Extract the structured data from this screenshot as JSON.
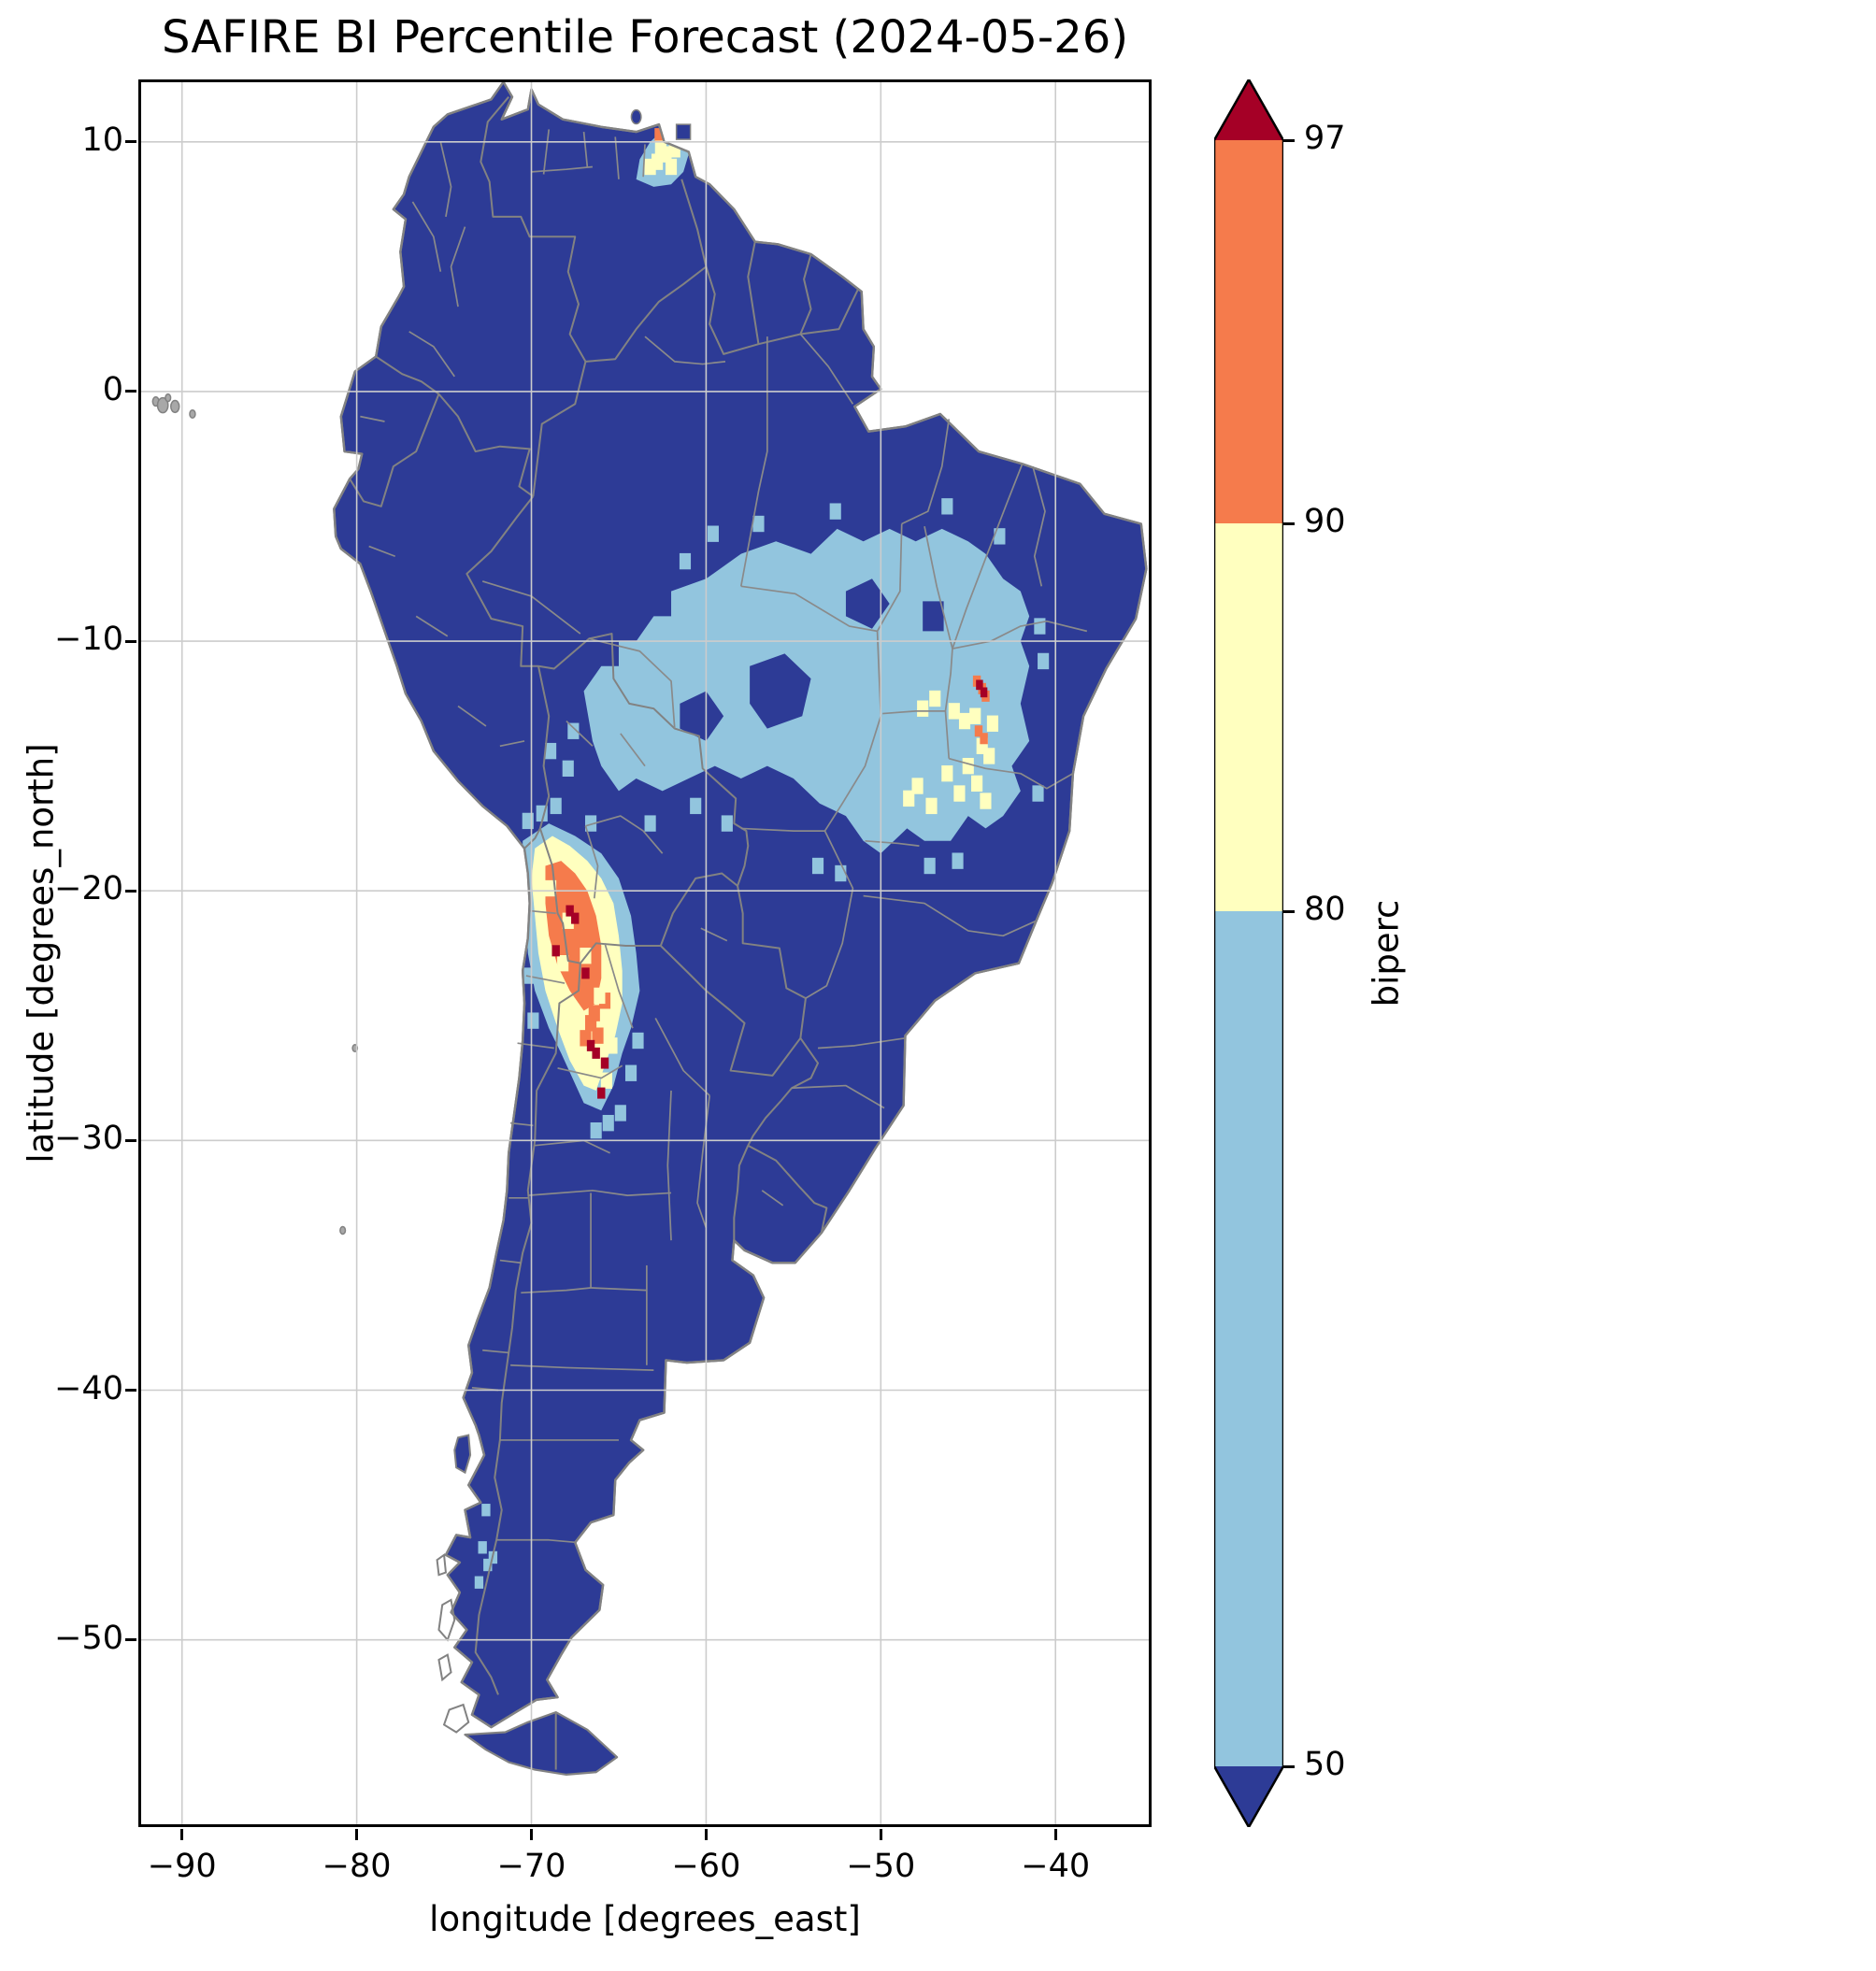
{
  "title": "SAFIRE BI Percentile Forecast (2024-05-26)",
  "axes": {
    "xlabel": "longitude [degrees_east]",
    "ylabel": "latitude [degrees_north]",
    "xlim": [
      -92.5,
      -34.5
    ],
    "ylim": [
      -57.5,
      12.5
    ],
    "x_ticks": [
      -90,
      -80,
      -70,
      -60,
      -50,
      -40
    ],
    "x_tick_labels": [
      "−90",
      "−80",
      "−70",
      "−60",
      "−50",
      "−40"
    ],
    "y_ticks": [
      10,
      0,
      -10,
      -20,
      -30,
      -40,
      -50
    ],
    "y_tick_labels": [
      "10",
      "0",
      "−10",
      "−20",
      "−30",
      "−40",
      "−50"
    ]
  },
  "colorbar": {
    "label": "biperc",
    "tick_labels": [
      "97",
      "90",
      "80",
      "50"
    ],
    "extend": "both"
  },
  "chart_data": {
    "type": "heatmap",
    "variable": "biperc",
    "forecast_date": "2024-05-26",
    "area": "South America",
    "boundaries": [
      50,
      80,
      90,
      97
    ],
    "bins": {
      "lt50": {
        "label": "< 50",
        "color": "#2d3b96"
      },
      "b50_80": {
        "label": "50-80",
        "color": "#92c5de"
      },
      "b80_90": {
        "label": "80-90",
        "color": "#ffffbf"
      },
      "b90_97": {
        "label": "90-97",
        "color": "#f57b4c"
      },
      "gt97": {
        "label": "> 97",
        "color": "#a50026"
      }
    },
    "regions": [
      {
        "name": "central-brazil-cerrado-blob",
        "bin": "b50_80",
        "polygon": [
          [
            -67.0,
            -12.0
          ],
          [
            -66.0,
            -11.0
          ],
          [
            -65.0,
            -11.0
          ],
          [
            -65.0,
            -10.0
          ],
          [
            -64.0,
            -10.0
          ],
          [
            -63.0,
            -9.0
          ],
          [
            -62.0,
            -9.0
          ],
          [
            -62.0,
            -8.0
          ],
          [
            -60.0,
            -7.5
          ],
          [
            -58.0,
            -6.5
          ],
          [
            -56.0,
            -6.0
          ],
          [
            -54.0,
            -6.5
          ],
          [
            -52.5,
            -5.5
          ],
          [
            -51.0,
            -6.0
          ],
          [
            -49.5,
            -5.5
          ],
          [
            -48.0,
            -6.0
          ],
          [
            -46.5,
            -5.5
          ],
          [
            -45.0,
            -6.0
          ],
          [
            -44.0,
            -6.5
          ],
          [
            -43.0,
            -7.5
          ],
          [
            -42.0,
            -8.0
          ],
          [
            -41.5,
            -9.0
          ],
          [
            -42.0,
            -10.0
          ],
          [
            -41.5,
            -11.0
          ],
          [
            -42.0,
            -12.5
          ],
          [
            -41.5,
            -14.0
          ],
          [
            -42.5,
            -15.0
          ],
          [
            -42.0,
            -16.0
          ],
          [
            -43.0,
            -17.0
          ],
          [
            -44.0,
            -17.5
          ],
          [
            -45.0,
            -17.0
          ],
          [
            -46.0,
            -18.0
          ],
          [
            -47.5,
            -18.0
          ],
          [
            -48.5,
            -17.5
          ],
          [
            -50.0,
            -18.5
          ],
          [
            -51.0,
            -18.0
          ],
          [
            -52.0,
            -17.0
          ],
          [
            -53.5,
            -16.5
          ],
          [
            -55.0,
            -15.5
          ],
          [
            -56.5,
            -15.0
          ],
          [
            -58.0,
            -15.5
          ],
          [
            -59.5,
            -15.0
          ],
          [
            -61.0,
            -15.5
          ],
          [
            -62.5,
            -16.0
          ],
          [
            -64.0,
            -15.5
          ],
          [
            -65.0,
            -16.0
          ],
          [
            -66.0,
            -15.0
          ],
          [
            -66.5,
            -14.0
          ]
        ]
      },
      {
        "name": "amazon-hole-1",
        "bin": "lt50",
        "polygon": [
          [
            -57.5,
            -11.0
          ],
          [
            -55.5,
            -10.5
          ],
          [
            -54.0,
            -11.5
          ],
          [
            -54.5,
            -13.0
          ],
          [
            -56.5,
            -13.5
          ],
          [
            -57.5,
            -12.5
          ]
        ]
      },
      {
        "name": "amazon-hole-2",
        "bin": "lt50",
        "polygon": [
          [
            -52.0,
            -8.0
          ],
          [
            -50.5,
            -7.5
          ],
          [
            -49.5,
            -8.5
          ],
          [
            -50.5,
            -9.5
          ],
          [
            -52.0,
            -9.0
          ]
        ]
      },
      {
        "name": "amazon-hole-3",
        "bin": "lt50",
        "polygon": [
          [
            -61.5,
            -12.5
          ],
          [
            -60.0,
            -12.0
          ],
          [
            -59.0,
            -13.0
          ],
          [
            -60.0,
            -14.0
          ],
          [
            -61.5,
            -13.5
          ]
        ]
      },
      {
        "name": "amazon-hole-4",
        "bin": "lt50",
        "polygon": [
          [
            -47.6,
            -8.4
          ],
          [
            -46.4,
            -8.4
          ],
          [
            -46.4,
            -9.6
          ],
          [
            -47.6,
            -9.6
          ]
        ]
      },
      {
        "name": "cerrado-blue-speckles",
        "bin": "b50_80",
        "cells": [
          [
            -61.2,
            -6.8
          ],
          [
            -59.6,
            -5.7
          ],
          [
            -57.0,
            -5.3
          ],
          [
            -52.6,
            -4.8
          ],
          [
            -46.2,
            -4.6
          ],
          [
            -43.2,
            -5.8
          ],
          [
            -40.9,
            -9.4
          ],
          [
            -40.7,
            -10.8
          ],
          [
            -41.0,
            -16.1
          ],
          [
            -52.3,
            -19.3
          ],
          [
            -53.6,
            -19.0
          ],
          [
            -47.2,
            -19.0
          ],
          [
            -45.6,
            -18.8
          ],
          [
            -58.8,
            -17.3
          ],
          [
            -60.6,
            -16.6
          ],
          [
            -67.6,
            -13.6
          ],
          [
            -67.9,
            -15.1
          ],
          [
            -63.2,
            -17.3
          ],
          [
            -68.9,
            -14.4
          ]
        ]
      },
      {
        "name": "bahia-yellow-cells",
        "bin": "b80_90",
        "cells": [
          [
            -45.8,
            -12.8
          ],
          [
            -45.2,
            -13.2
          ],
          [
            -44.6,
            -13.0
          ],
          [
            -44.2,
            -14.2
          ],
          [
            -45.0,
            -15.0
          ],
          [
            -44.5,
            -15.7
          ],
          [
            -45.5,
            -16.1
          ],
          [
            -46.2,
            -15.3
          ],
          [
            -43.8,
            -14.6
          ],
          [
            -46.9,
            -12.3
          ],
          [
            -47.6,
            -12.7
          ],
          [
            -47.9,
            -15.8
          ],
          [
            -48.4,
            -16.3
          ],
          [
            -47.1,
            -16.6
          ],
          [
            -44.0,
            -16.4
          ],
          [
            -43.6,
            -13.3
          ]
        ]
      },
      {
        "name": "bahia-orange-cells",
        "bin": "b90_97",
        "cell_size": 0.45,
        "cells": [
          [
            -44.5,
            -11.6
          ],
          [
            -44.2,
            -11.9
          ],
          [
            -44.0,
            -12.2
          ],
          [
            -44.4,
            -13.6
          ],
          [
            -44.1,
            -13.9
          ]
        ]
      },
      {
        "name": "bahia-red-cells",
        "bin": "gt97",
        "cell_size": 0.4,
        "cells": [
          [
            -44.35,
            -11.75
          ],
          [
            -44.1,
            -12.05
          ]
        ]
      },
      {
        "name": "andes-blue-fringe",
        "bin": "b50_80",
        "polygon": [
          [
            -70.5,
            -18.0
          ],
          [
            -69.0,
            -17.3
          ],
          [
            -67.5,
            -17.8
          ],
          [
            -66.0,
            -18.5
          ],
          [
            -65.0,
            -19.5
          ],
          [
            -64.3,
            -21.0
          ],
          [
            -64.0,
            -22.5
          ],
          [
            -63.8,
            -24.0
          ],
          [
            -64.3,
            -25.5
          ],
          [
            -64.8,
            -26.5
          ],
          [
            -65.3,
            -27.8
          ],
          [
            -66.0,
            -28.8
          ],
          [
            -67.0,
            -28.5
          ],
          [
            -68.3,
            -26.5
          ],
          [
            -69.0,
            -25.5
          ],
          [
            -69.8,
            -24.0
          ],
          [
            -70.2,
            -22.5
          ],
          [
            -70.3,
            -21.0
          ],
          [
            -70.5,
            -19.5
          ]
        ]
      },
      {
        "name": "andes-yellow-band",
        "bin": "b80_90",
        "polygon": [
          [
            -69.8,
            -18.3
          ],
          [
            -68.8,
            -17.8
          ],
          [
            -67.8,
            -18.2
          ],
          [
            -66.8,
            -18.8
          ],
          [
            -66.0,
            -19.5
          ],
          [
            -65.3,
            -20.5
          ],
          [
            -65.0,
            -21.8
          ],
          [
            -64.8,
            -23.2
          ],
          [
            -64.8,
            -24.5
          ],
          [
            -65.2,
            -25.8
          ],
          [
            -65.8,
            -27.0
          ],
          [
            -66.3,
            -28.0
          ],
          [
            -67.0,
            -27.8
          ],
          [
            -67.8,
            -26.8
          ],
          [
            -68.5,
            -25.5
          ],
          [
            -69.2,
            -24.0
          ],
          [
            -69.6,
            -22.5
          ],
          [
            -69.8,
            -21.0
          ],
          [
            -70.0,
            -19.5
          ]
        ]
      },
      {
        "name": "andes-orange-core",
        "bin": "b90_97",
        "polygon": [
          [
            -69.2,
            -19.0
          ],
          [
            -68.3,
            -18.8
          ],
          [
            -67.5,
            -19.3
          ],
          [
            -66.8,
            -20.0
          ],
          [
            -66.3,
            -21.0
          ],
          [
            -66.0,
            -22.2
          ],
          [
            -66.0,
            -23.5
          ],
          [
            -66.3,
            -24.5
          ],
          [
            -67.0,
            -24.8
          ],
          [
            -67.8,
            -24.0
          ],
          [
            -68.5,
            -23.0
          ],
          [
            -69.0,
            -21.8
          ],
          [
            -69.2,
            -20.5
          ]
        ]
      },
      {
        "name": "andes-orange-south-cells",
        "bin": "b90_97",
        "cells": [
          [
            -66.6,
            -25.3
          ],
          [
            -66.2,
            -25.8
          ],
          [
            -66.9,
            -25.9
          ],
          [
            -66.4,
            -24.9
          ],
          [
            -65.8,
            -24.4
          ]
        ]
      },
      {
        "name": "andes-yellow-speckles",
        "bin": "b80_90",
        "cells": [
          [
            -68.9,
            -19.9
          ],
          [
            -67.9,
            -21.2
          ],
          [
            -66.9,
            -22.6
          ],
          [
            -68.2,
            -22.9
          ],
          [
            -66.0,
            -26.5
          ],
          [
            -65.7,
            -27.6
          ],
          [
            -66.4,
            -27.2
          ],
          [
            -65.4,
            -26.2
          ],
          [
            -66.1,
            -24.2
          ]
        ]
      },
      {
        "name": "andes-blue-speckles",
        "bin": "b50_80",
        "cells": [
          [
            -70.2,
            -17.2
          ],
          [
            -69.4,
            -16.9
          ],
          [
            -68.6,
            -16.6
          ],
          [
            -66.6,
            -17.3
          ],
          [
            -65.6,
            -29.3
          ],
          [
            -66.3,
            -29.6
          ],
          [
            -64.9,
            -28.9
          ],
          [
            -64.3,
            -27.3
          ],
          [
            -63.9,
            -26.0
          ],
          [
            -69.9,
            -25.2
          ],
          [
            -70.1,
            -23.4
          ]
        ]
      },
      {
        "name": "andes-red-cells",
        "bin": "gt97",
        "cell_size": 0.45,
        "cells": [
          [
            -67.8,
            -20.8
          ],
          [
            -67.5,
            -21.1
          ],
          [
            -68.6,
            -22.4
          ],
          [
            -66.9,
            -23.3
          ],
          [
            -66.6,
            -26.2
          ],
          [
            -66.3,
            -26.5
          ],
          [
            -66.0,
            -28.1
          ],
          [
            -65.8,
            -26.9
          ]
        ]
      },
      {
        "name": "orinoco-delta-blue",
        "bin": "b50_80",
        "polygon": [
          [
            -64.0,
            8.5
          ],
          [
            -63.0,
            8.2
          ],
          [
            -62.0,
            8.3
          ],
          [
            -61.3,
            8.8
          ],
          [
            -61.0,
            9.5
          ],
          [
            -61.6,
            10.2
          ],
          [
            -62.4,
            10.5
          ],
          [
            -63.2,
            10.0
          ],
          [
            -63.8,
            9.3
          ]
        ]
      },
      {
        "name": "orinoco-yellow-cells",
        "bin": "b80_90",
        "cells": [
          [
            -62.8,
            9.2
          ],
          [
            -62.3,
            9.5
          ],
          [
            -62.0,
            9.0
          ],
          [
            -62.6,
            9.8
          ],
          [
            -61.8,
            9.7
          ],
          [
            -63.2,
            9.0
          ]
        ]
      },
      {
        "name": "orinoco-orange-cell",
        "bin": "b90_97",
        "cell_size": 0.5,
        "cells": [
          [
            -62.7,
            10.3
          ]
        ]
      },
      {
        "name": "orinoco-red-cell",
        "bin": "gt97",
        "cell_size": 0.45,
        "cells": [
          [
            -62.3,
            10.35
          ]
        ]
      },
      {
        "name": "patagonia-blue-speckles",
        "bin": "b50_80",
        "cell_size": 0.5,
        "cells": [
          [
            -72.8,
            -46.3
          ],
          [
            -72.5,
            -47.0
          ],
          [
            -73.0,
            -47.7
          ],
          [
            -72.2,
            -46.7
          ],
          [
            -72.6,
            -44.8
          ]
        ]
      }
    ]
  }
}
